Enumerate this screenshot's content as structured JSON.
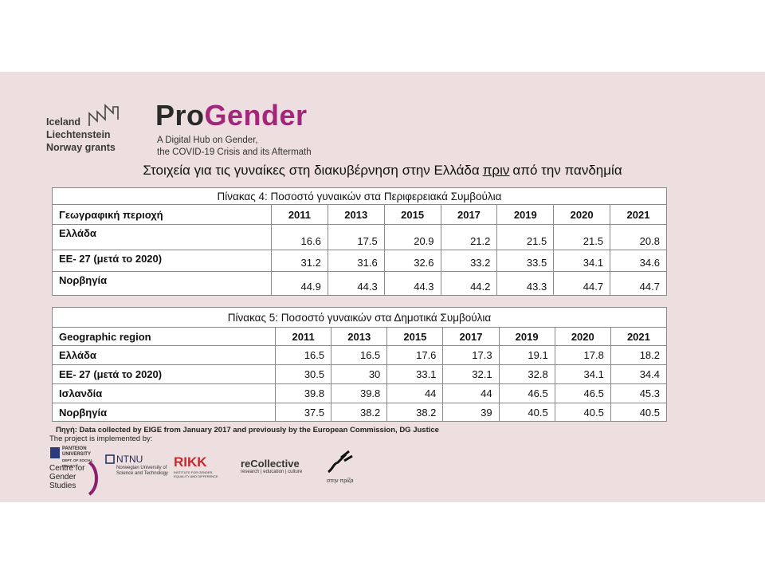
{
  "logos": {
    "eea_grants": [
      "Iceland",
      "Liechtenstein",
      "Norway grants"
    ]
  },
  "brand": {
    "pro": "Pro",
    "gender": "Gender",
    "tagline": [
      "A Digital Hub on Gender,",
      "the COVID-19 Crisis and its Aftermath"
    ]
  },
  "heading": {
    "before": "Στοιχεία για τις γυναίκες στη διακυβέρνηση στην Ελλάδα",
    "underlined": "πριν",
    "after": "από την πανδημία"
  },
  "tables": [
    {
      "title": "Πίνακας 4: Ποσοστό γυναικών στα Περιφερειακά Συμβούλια",
      "header": [
        "Γεωγραφική περιοχή",
        "2011",
        "2013",
        "2015",
        "2017",
        "2019",
        "2020",
        "2021"
      ],
      "rows": [
        [
          "Ελλάδα",
          "16.6",
          "17.5",
          "20.9",
          "21.2",
          "21.5",
          "21.5",
          "20.8"
        ],
        [
          "ΕΕ- 27 (μετά το 2020)",
          "31.2",
          "31.6",
          "32.6",
          "33.2",
          "33.5",
          "34.1",
          "34.6"
        ],
        [
          "Νορβηγία",
          "44.9",
          "44.3",
          "44.3",
          "44.2",
          "43.3",
          "44.7",
          "44.7"
        ]
      ]
    },
    {
      "title": "Πίνακας 5: Ποσοστό γυναικών στα Δημοτικά Συμβούλια",
      "header": [
        "Geographic region",
        "2011",
        "2013",
        "2015",
        "2017",
        "2019",
        "2020",
        "2021"
      ],
      "rows": [
        [
          "Ελλάδα",
          "16.5",
          "16.5",
          "17.6",
          "17.3",
          "19.1",
          "17.8",
          "18.2"
        ],
        [
          "ΕΕ- 27 (μετά το 2020)",
          "30.5",
          "30",
          "33.1",
          "32.1",
          "32.8",
          "34.1",
          "34.4"
        ],
        [
          "Ισλανδία",
          "39.8",
          "39.8",
          "44",
          "44",
          "46.5",
          "46.5",
          "45.3"
        ],
        [
          "Νορβηγία",
          "37.5",
          "38.2",
          "38.2",
          "39",
          "40.5",
          "40.5",
          "40.5"
        ]
      ]
    }
  ],
  "source": "Πηγή: Data collected by EIGE from January 2017 and previously by the European Commission, DG Justice",
  "implemented_by": "The project is implemented by:",
  "partners": {
    "panteion": [
      "PANTEION",
      "UNIVERSITY",
      "DEPT. OF SOCIAL POLICY"
    ],
    "centre": [
      "Centre for",
      "Gender",
      "Studies"
    ],
    "ntnu": [
      "NTNU",
      "Norwegian University of",
      "Science and Technology"
    ],
    "rikk": [
      "RIKK",
      "INSTITUTE FOR GENDER,",
      "EQUALITY AND DIFFERENCE"
    ],
    "recollective": [
      "reCollective",
      "research | education | culture"
    ],
    "stin_priza": "στην πρίζα"
  }
}
